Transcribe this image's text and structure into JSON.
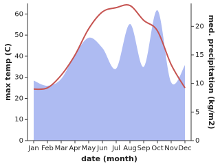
{
  "chart_data": {
    "type": "line-area-dual",
    "x_label": "date (month)",
    "y_label": "max temp (C)",
    "y2_label": "med. precipitation (kg/m2)",
    "categories": [
      "Jan",
      "Feb",
      "Mar",
      "Apr",
      "May",
      "Jun",
      "Jul",
      "Aug",
      "Sep",
      "Oct",
      "Nov",
      "Dec"
    ],
    "series": [
      {
        "name": "med. precipitation",
        "color": "#aebbf2",
        "axis": "y2",
        "kind": "area",
        "values": [
          10.5,
          9.6,
          10.8,
          15,
          18,
          16.2,
          12.6,
          20.4,
          12.9,
          22.8,
          10.2,
          13.2
        ]
      },
      {
        "name": "max temp",
        "color": "#c65451",
        "axis": "y",
        "kind": "line",
        "values": [
          24.4,
          25,
          31,
          40.5,
          53,
          61,
          63,
          64,
          57,
          52,
          36,
          25
        ]
      }
    ],
    "ylim": [
      0,
      65
    ],
    "yticks": [
      0,
      10,
      20,
      30,
      40,
      50,
      60
    ],
    "y2lim": [
      0,
      24
    ],
    "y2ticks": [
      0,
      5,
      10,
      15,
      20
    ]
  }
}
